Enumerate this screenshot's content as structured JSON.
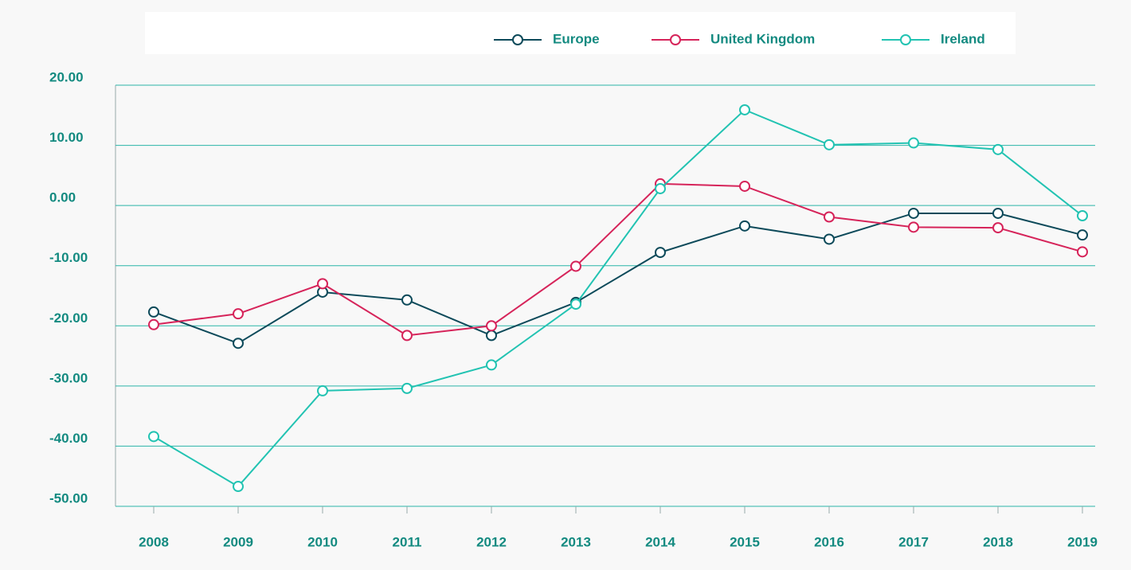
{
  "chart_data": {
    "type": "line",
    "categories": [
      "2008",
      "2009",
      "2010",
      "2011",
      "2012",
      "2013",
      "2014",
      "2015",
      "2016",
      "2017",
      "2018",
      "2019"
    ],
    "series": [
      {
        "name": "Europe",
        "color": "#0d4a5a",
        "values": [
          -17.7,
          -22.9,
          -14.4,
          -15.7,
          -21.6,
          -16.1,
          -7.8,
          -3.4,
          -5.6,
          -1.3,
          -1.3,
          -4.9
        ]
      },
      {
        "name": "United Kingdom",
        "color": "#d6245a",
        "values": [
          -19.8,
          -18.0,
          -13.0,
          -21.6,
          -20.0,
          -10.1,
          3.6,
          3.2,
          -1.9,
          -3.6,
          -3.7,
          -7.7
        ]
      },
      {
        "name": "Ireland",
        "color": "#22c3b2",
        "values": [
          -38.4,
          -46.7,
          -30.8,
          -30.4,
          -26.5,
          -16.4,
          2.8,
          15.9,
          10.1,
          10.4,
          9.3,
          -1.7
        ]
      }
    ],
    "ylim": [
      -50,
      20
    ],
    "yticks": [
      {
        "value": -50,
        "label": "-50.00"
      },
      {
        "value": -40,
        "label": "-40.00"
      },
      {
        "value": -30,
        "label": "-30.00"
      },
      {
        "value": -20,
        "label": "-20.00"
      },
      {
        "value": -10,
        "label": "-10.00"
      },
      {
        "value": 0,
        "label": "0.00"
      },
      {
        "value": 10,
        "label": "10.00"
      },
      {
        "value": 20,
        "label": "20.00"
      }
    ],
    "grid": true
  }
}
